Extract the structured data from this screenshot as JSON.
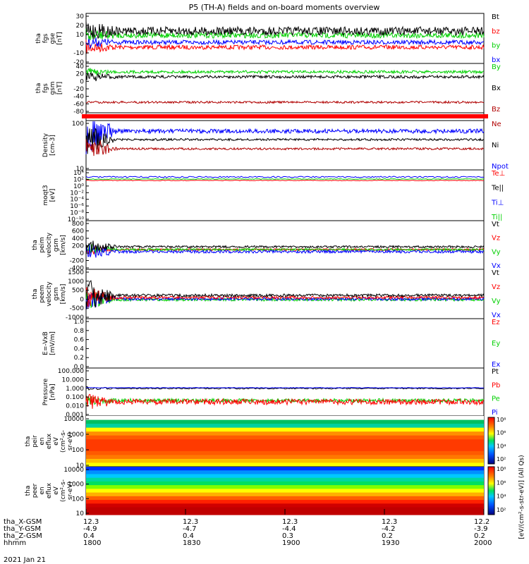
{
  "title": "P5 (TH-A) fields and on-board moments overview",
  "colors": {
    "black": "#000000",
    "red": "#ff0000",
    "green": "#00d000",
    "blue": "#0000ff",
    "darkred": "#b00000"
  },
  "panels": [
    {
      "ylabel": [
        "tha",
        "fgs",
        "gse",
        "[nT]"
      ],
      "ticks": [
        "30",
        "20",
        "10",
        "0",
        "-10",
        "-20"
      ],
      "legend": [
        {
          "label": "Bt",
          "color": "black"
        },
        {
          "label": "bz",
          "color": "red"
        },
        {
          "label": "by",
          "color": "green"
        },
        {
          "label": "bx",
          "color": "blue"
        }
      ]
    },
    {
      "ylabel": [
        "tha",
        "fgs",
        "gsm",
        "[nT]"
      ],
      "ticks": [
        "40",
        "20",
        "0",
        "-20",
        "-40",
        "-60",
        "-80"
      ],
      "legend": [
        {
          "label": "By",
          "color": "green"
        },
        {
          "label": "Bx",
          "color": "black"
        },
        {
          "label": "Bz",
          "color": "darkred"
        }
      ]
    },
    {
      "ylabel": [],
      "ticks": [],
      "legend": []
    },
    {
      "ylabel": [
        "Density",
        "[cm-3]"
      ],
      "ticks": [
        "100",
        "10"
      ],
      "legend": [
        {
          "label": "Ne",
          "color": "darkred"
        },
        {
          "label": "Ni",
          "color": "black"
        },
        {
          "label": "Npot",
          "color": "blue"
        }
      ]
    },
    {
      "ylabel": [
        "moqt3",
        "[eV]"
      ],
      "ticks": [
        "10⁴",
        "10²",
        "10⁰",
        "10⁻²",
        "10⁻⁴",
        "10⁻⁶",
        "10⁻⁸",
        "10⁻¹⁰"
      ],
      "legend": [
        {
          "label": "Te⊥",
          "color": "red"
        },
        {
          "label": "Te||",
          "color": "black"
        },
        {
          "label": "Ti⊥",
          "color": "blue"
        },
        {
          "label": "Ti||",
          "color": "green"
        }
      ]
    },
    {
      "ylabel": [
        "tha",
        "peim",
        "velocity",
        "gsm",
        "[km/s]"
      ],
      "ticks": [
        "800",
        "600",
        "400",
        "200",
        "0",
        "-200",
        "-400"
      ],
      "legend": [
        {
          "label": "Vt",
          "color": "black"
        },
        {
          "label": "Vz",
          "color": "red"
        },
        {
          "label": "Vy",
          "color": "green"
        },
        {
          "label": "Vx",
          "color": "blue"
        }
      ]
    },
    {
      "ylabel": [
        "tha",
        "peem",
        "velocity",
        "gsm",
        "[km/s]"
      ],
      "ticks": [
        "1500",
        "1000",
        "500",
        "0",
        "-500",
        "-1000"
      ],
      "legend": [
        {
          "label": "Vt",
          "color": "black"
        },
        {
          "label": "Vz",
          "color": "red"
        },
        {
          "label": "Vy",
          "color": "green"
        },
        {
          "label": "Vx",
          "color": "blue"
        }
      ]
    },
    {
      "ylabel": [
        "E=-VxB",
        "[mV/m]"
      ],
      "ticks": [
        "1.0",
        "0.8",
        "0.6",
        "0.4",
        "0.2",
        "0.0"
      ],
      "legend": [
        {
          "label": "Ez",
          "color": "red"
        },
        {
          "label": "Ey",
          "color": "green"
        },
        {
          "label": "Ex",
          "color": "blue"
        }
      ]
    },
    {
      "ylabel": [
        "Pressure",
        "[nPa]"
      ],
      "ticks": [
        "100.000",
        "10.000",
        "1.000",
        "0.100",
        "0.010",
        "0.001"
      ],
      "legend": [
        {
          "label": "Pt",
          "color": "black"
        },
        {
          "label": "Pb",
          "color": "red"
        },
        {
          "label": "Pe",
          "color": "green"
        },
        {
          "label": "Pi",
          "color": "blue"
        }
      ]
    },
    {
      "ylabel": [
        "tha",
        "peir",
        "en",
        "eflux",
        "eV",
        "(cm²-s-",
        "sr-eV)"
      ],
      "ticks": [
        "10000",
        "1000",
        "100",
        "10"
      ],
      "legend": []
    },
    {
      "ylabel": [
        "tha",
        "peer",
        "en",
        "eflux",
        "eV",
        "(cm²-s-",
        "sr-eV)"
      ],
      "ticks": [
        "10000",
        "1000",
        "100",
        "10"
      ],
      "legend": []
    }
  ],
  "colorbar": {
    "ticks": [
      "10⁸",
      "10⁶",
      "10⁴",
      "10²"
    ],
    "label": "[eV/(cm²-s-str-eV)] (All Qs)"
  },
  "footer_rows": [
    {
      "label": "tha_X-GSM",
      "values": [
        "12.3",
        "12.3",
        "12.3",
        "12.3",
        "12.2"
      ]
    },
    {
      "label": "tha_Y-GSM",
      "values": [
        "-4.9",
        "-4.7",
        "-4.4",
        "-4.2",
        "-3.9"
      ]
    },
    {
      "label": "tha_Z-GSM",
      "values": [
        "0.4",
        "0.4",
        "0.3",
        "0.2",
        "0.2"
      ]
    },
    {
      "label": "hhmm",
      "values": [
        "1800",
        "1830",
        "1900",
        "1930",
        "2000"
      ]
    }
  ],
  "date": "2021 Jan 21",
  "chart_data": {
    "type": "line",
    "title": "P5 (TH-A) fields and on-board moments overview",
    "x": [
      "1800",
      "1830",
      "1900",
      "1930",
      "2000"
    ],
    "xlabel": "hhmm",
    "series": [
      {
        "name": "Bt",
        "values": [
          15,
          13,
          12,
          12,
          12
        ]
      },
      {
        "name": "bz",
        "values": [
          -8,
          -3,
          -2,
          -3,
          -3
        ]
      },
      {
        "name": "by",
        "values": [
          8,
          6,
          6,
          6,
          6
        ]
      },
      {
        "name": "bx",
        "values": [
          2,
          1,
          1,
          1,
          1
        ]
      },
      {
        "name": "By",
        "values": [
          20,
          20,
          20,
          20,
          20
        ]
      },
      {
        "name": "Bx",
        "values": [
          0,
          5,
          5,
          5,
          5
        ]
      },
      {
        "name": "Bz",
        "values": [
          -60,
          -60,
          -60,
          -60,
          -60
        ]
      },
      {
        "name": "Ne",
        "values": [
          15,
          20,
          20,
          20,
          20
        ]
      },
      {
        "name": "Ni",
        "values": [
          30,
          33,
          33,
          33,
          33
        ]
      },
      {
        "name": "Npot",
        "values": [
          80,
          75,
          80,
          80,
          80
        ]
      },
      {
        "name": "Pt",
        "values": [
          1,
          1,
          1,
          1,
          1
        ]
      },
      {
        "name": "Pb",
        "values": [
          0.06,
          0.06,
          0.06,
          0.06,
          0.06
        ]
      },
      {
        "name": "Pi",
        "values": [
          0.9,
          0.9,
          0.9,
          0.9,
          0.9
        ]
      }
    ]
  }
}
